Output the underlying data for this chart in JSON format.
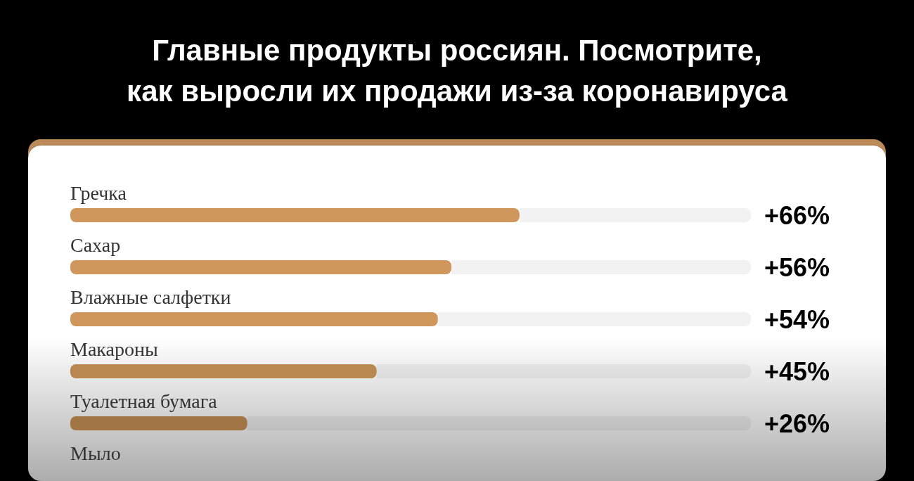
{
  "chart_data": {
    "type": "bar",
    "orientation": "horizontal",
    "title": "Главные продукты россиян. Посмотрите, как выросли их продажи из-за коронавируса",
    "categories": [
      "Гречка",
      "Сахар",
      "Влажные салфетки",
      "Макароны",
      "Туалетная бумага",
      "Мыло"
    ],
    "values": [
      66,
      56,
      54,
      45,
      26,
      null
    ],
    "colors": [
      "#cf975c",
      "#cf975c",
      "#cf975c",
      "#b98850",
      "#a27545",
      null
    ],
    "value_labels": [
      "+66%",
      "+56%",
      "+54%",
      "+45%",
      "+26%",
      null
    ],
    "xlim": [
      0,
      100
    ]
  }
}
